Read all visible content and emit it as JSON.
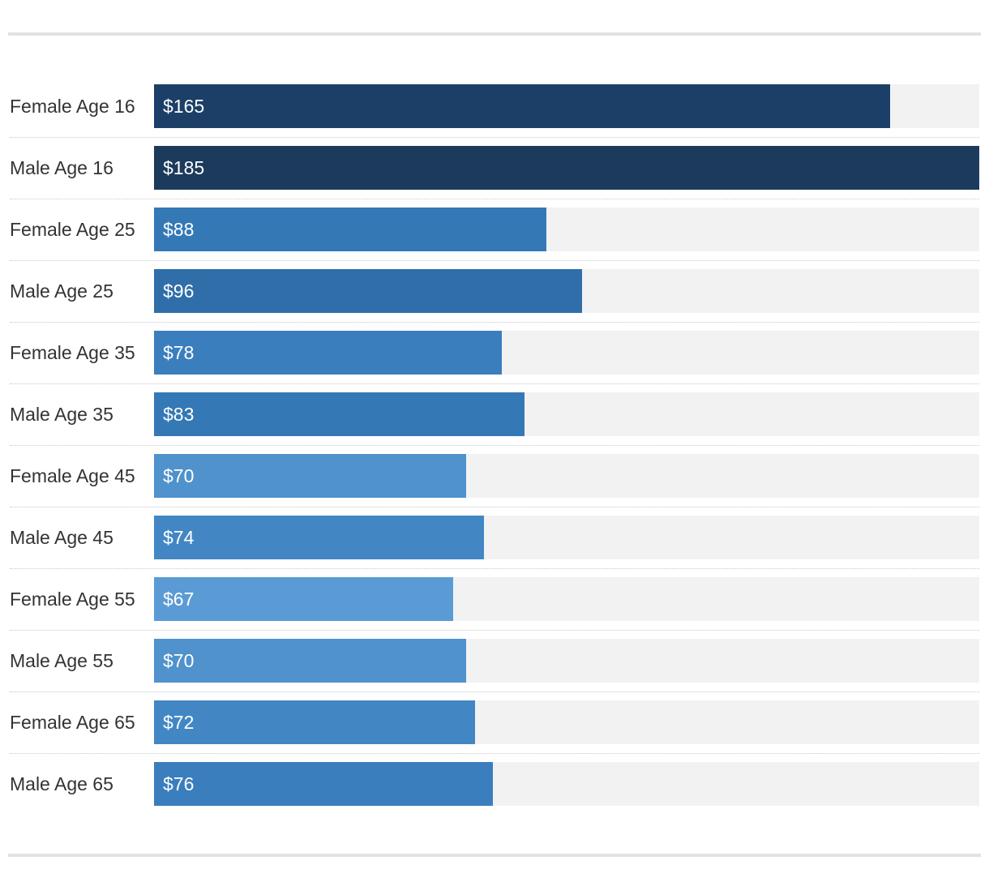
{
  "chart_data": {
    "type": "bar",
    "orientation": "horizontal",
    "categories": [
      "Female Age 16",
      "Male Age 16",
      "Female Age 25",
      "Male Age 25",
      "Female Age 35",
      "Male Age 35",
      "Female Age 45",
      "Male Age 45",
      "Female Age 55",
      "Male Age 55",
      "Female Age 65",
      "Male Age 65"
    ],
    "values": [
      165,
      185,
      88,
      96,
      78,
      83,
      70,
      74,
      67,
      70,
      72,
      76
    ],
    "value_labels": [
      "$165",
      "$185",
      "$88",
      "$96",
      "$78",
      "$83",
      "$70",
      "$74",
      "$67",
      "$70",
      "$72",
      "$76"
    ],
    "xlim": [
      0,
      185
    ],
    "title": "",
    "xlabel": "",
    "ylabel": "",
    "grid": false,
    "colors": {
      "track": "#f2f2f2",
      "scale": [
        "#5b9bd5",
        "#4f92cc",
        "#4287c4",
        "#3a7ebd",
        "#3478b6",
        "#2f6ea9",
        "#2a649f",
        "#235993",
        "#204f84",
        "#1c4474",
        "#1b3f66",
        "#1b3a5c"
      ]
    }
  }
}
